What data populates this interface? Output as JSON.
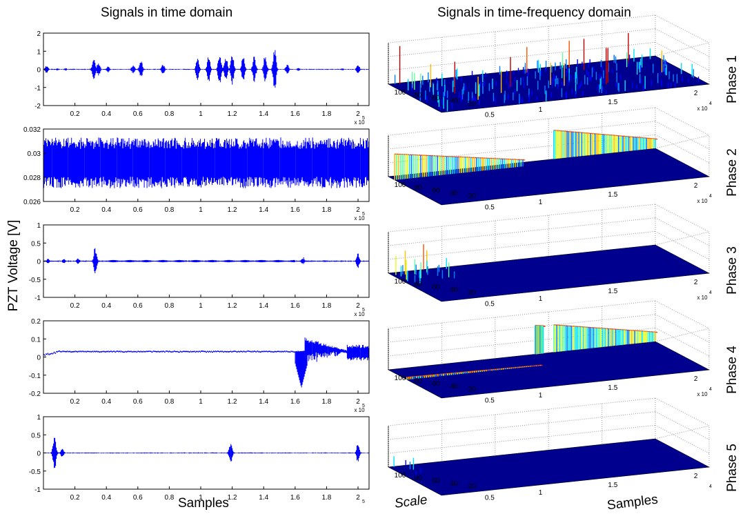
{
  "titles": {
    "left": "Signals in time domain",
    "right": "Signals in time-frequency domain"
  },
  "ylabel": "PZT Voltage [V]",
  "xlabel_left": "Samples",
  "xlabel_right": "Samples",
  "scale_label": "Scale",
  "colors": {
    "time_line": "#0000ff",
    "surface_base": "#00008f"
  },
  "chart_data": [
    {
      "type": "line",
      "name": "Phase 1 time",
      "xlim": [
        0,
        2.07
      ],
      "ylim": [
        -2,
        2
      ],
      "yticks": [
        "2",
        "1",
        "0",
        "-1",
        "-2"
      ],
      "xticks": [
        "0.2",
        "0.4",
        "0.6",
        "0.8",
        "1",
        "1.2",
        "1.4",
        "1.6",
        "1.8",
        "2"
      ],
      "xexp": "x 10",
      "bursts": [
        [
          0.02,
          0.25
        ],
        [
          0.09,
          0.07
        ],
        [
          0.14,
          0.08
        ],
        [
          0.32,
          0.7
        ],
        [
          0.35,
          0.45
        ],
        [
          0.41,
          0.2
        ],
        [
          0.57,
          0.3
        ],
        [
          0.62,
          0.6
        ],
        [
          0.76,
          0.35
        ],
        [
          0.98,
          0.75
        ],
        [
          1.05,
          0.8
        ],
        [
          1.12,
          1.15
        ],
        [
          1.16,
          0.9
        ],
        [
          1.2,
          1.0
        ],
        [
          1.27,
          0.9
        ],
        [
          1.34,
          0.9
        ],
        [
          1.41,
          1.0
        ],
        [
          1.47,
          1.35
        ],
        [
          1.55,
          0.3
        ],
        [
          1.62,
          0.12
        ],
        [
          1.9,
          0.08
        ],
        [
          2.0,
          0.3
        ]
      ],
      "noise": 0.02
    },
    {
      "type": "line",
      "name": "Phase 2 time",
      "xlim": [
        0,
        2.07
      ],
      "ylim": [
        0.026,
        0.032
      ],
      "yticks": [
        "0.032",
        "0.03",
        "0.028",
        "0.026"
      ],
      "xticks": [
        "0.2",
        "0.4",
        "0.6",
        "0.8",
        "1",
        "1.2",
        "1.4",
        "1.6",
        "1.8",
        "2"
      ],
      "xexp": "x 10",
      "baseline": 0.0292,
      "noise": 0.0021
    },
    {
      "type": "line",
      "name": "Phase 3 time",
      "xlim": [
        0,
        2.07
      ],
      "ylim": [
        -1,
        1
      ],
      "yticks": [
        "1",
        "0.5",
        "0",
        "-0.5",
        "-1"
      ],
      "xticks": [
        "0.2",
        "0.4",
        "0.6",
        "0.8",
        "1",
        "1.2",
        "1.4",
        "1.6",
        "1.8",
        "2"
      ],
      "xexp": "x 10",
      "bursts": [
        [
          0.03,
          0.08
        ],
        [
          0.13,
          0.08
        ],
        [
          0.22,
          0.1
        ],
        [
          0.33,
          0.5
        ],
        [
          1.65,
          0.12
        ],
        [
          2.0,
          0.25
        ]
      ],
      "noise": 0.015
    },
    {
      "type": "line",
      "name": "Phase 4 time",
      "xlim": [
        0,
        2.07
      ],
      "ylim": [
        -0.2,
        0.2
      ],
      "yticks": [
        "0.2",
        "0.1",
        "0",
        "-0.1",
        "-0.2"
      ],
      "xticks": [
        "0.2",
        "0.4",
        "0.6",
        "0.8",
        "1",
        "1.2",
        "1.4",
        "1.6",
        "1.8",
        "2"
      ],
      "xexp": "x 10",
      "baseline": 0.03,
      "dip": {
        "x": 1.66,
        "min": -0.17,
        "max": 0.11
      },
      "noise": 0.003
    },
    {
      "type": "line",
      "name": "Phase 5 time",
      "xlim": [
        0,
        2.07
      ],
      "ylim": [
        -1,
        1
      ],
      "yticks": [
        "1",
        "0.5",
        "0",
        "-0.5",
        "-1"
      ],
      "xticks": [
        "0.2",
        "0.4",
        "0.6",
        "0.8",
        "1",
        "1.2",
        "1.4",
        "1.6",
        "1.8",
        "2"
      ],
      "xexp": "",
      "bursts": [
        [
          0.07,
          0.6
        ],
        [
          0.12,
          0.15
        ],
        [
          1.19,
          0.35
        ],
        [
          2.0,
          0.3
        ]
      ],
      "noise": 0.01
    },
    {
      "type": "area",
      "name": "Phase 1 time-frequency",
      "label": "Phase 1",
      "scale_ticks": [
        "100",
        "80",
        "60",
        "40",
        "20"
      ],
      "sample_ticks": [
        "0.5",
        "1",
        "1.5",
        "2"
      ],
      "sexp": "x 10",
      "sexp_power": "4",
      "pattern": "dense"
    },
    {
      "type": "area",
      "name": "Phase 2 time-frequency",
      "label": "Phase 2",
      "scale_ticks": [
        "100",
        "80",
        "60",
        "40",
        "20"
      ],
      "sample_ticks": [
        "0.5",
        "1",
        "1.5",
        "2"
      ],
      "sexp": "x 10",
      "sexp_power": "4",
      "pattern": "walls"
    },
    {
      "type": "area",
      "name": "Phase 3 time-frequency",
      "label": "Phase 3",
      "scale_ticks": [
        "100",
        "80",
        "60",
        "40",
        "20"
      ],
      "sample_ticks": [
        "0.5",
        "1",
        "1.5",
        "2"
      ],
      "sexp": "x 10",
      "sexp_power": "4",
      "pattern": "spikes"
    },
    {
      "type": "area",
      "name": "Phase 4 time-frequency",
      "label": "Phase 4",
      "scale_ticks": [
        "100",
        "80",
        "60",
        "40",
        "20"
      ],
      "sample_ticks": [
        "0.5",
        "1",
        "1.5",
        "2"
      ],
      "sexp": "x 10",
      "sexp_power": "4",
      "pattern": "walls2"
    },
    {
      "type": "area",
      "name": "Phase 5 time-frequency",
      "label": "Phase 5",
      "scale_ticks": [
        "100",
        "80",
        "60",
        "40",
        "20"
      ],
      "sample_ticks": [
        "0.5",
        "1",
        "1.5",
        "2"
      ],
      "sexp": "",
      "sexp_power": "4",
      "pattern": "flat"
    }
  ]
}
